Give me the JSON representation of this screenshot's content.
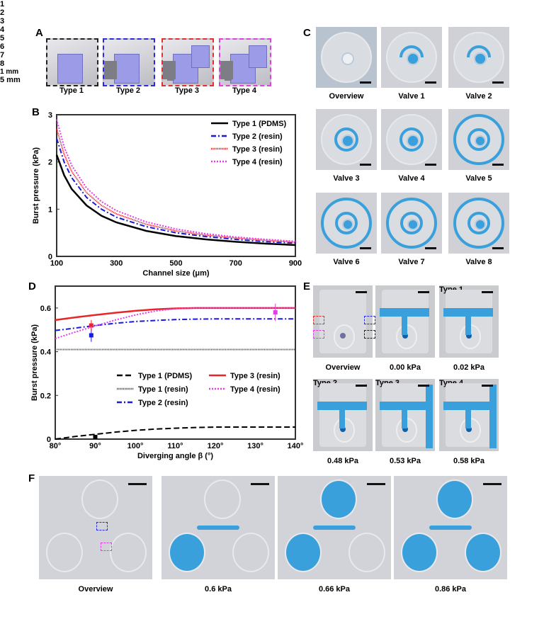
{
  "panels": {
    "A": "A",
    "B": "B",
    "C": "C",
    "D": "D",
    "E": "E",
    "F": "F"
  },
  "colors": {
    "type1": "#000000",
    "type2": "#1a1adc",
    "type3": "#e8262a",
    "type4": "#e83be8",
    "dye": "#3aa0dc"
  },
  "panelA": {
    "types": [
      {
        "label": "Type 1",
        "border": "#222222"
      },
      {
        "label": "Type 2",
        "border": "#2a2ae0"
      },
      {
        "label": "Type 3",
        "border": "#e03030"
      },
      {
        "label": "Type 4",
        "border": "#e040e0"
      }
    ]
  },
  "panelC": {
    "tiles": [
      "Overview",
      "Valve 1",
      "Valve 2",
      "Valve 3",
      "Valve 4",
      "Valve 5",
      "Valve 6",
      "Valve 7",
      "Valve 8"
    ],
    "overview_numbers": [
      "1",
      "2",
      "3",
      "4",
      "5",
      "6",
      "7",
      "8"
    ]
  },
  "panelE": {
    "scale": "1 mm",
    "tiles": [
      {
        "caption": "Overview",
        "label": ""
      },
      {
        "caption": "0.00 kPa",
        "label": ""
      },
      {
        "caption": "0.02 kPa",
        "label": "Type 1"
      },
      {
        "caption": "0.48 kPa",
        "label": "Type 2"
      },
      {
        "caption": "0.53 kPa",
        "label": "Type 3"
      },
      {
        "caption": "0.58 kPa",
        "label": "Type 4"
      }
    ]
  },
  "panelF": {
    "scale": "5 mm",
    "tiles": [
      "Overview",
      "0.6 kPa",
      "0.66 kPa",
      "0.86 kPa"
    ]
  },
  "chart_data": [
    {
      "panel": "B",
      "type": "line",
      "xlabel": "Channel size (μm)",
      "ylabel": "Burst pressure (kPa)",
      "xlim": [
        100,
        900
      ],
      "ylim": [
        0,
        3
      ],
      "xticks": [
        "100",
        "300",
        "500",
        "700",
        "900"
      ],
      "yticks": [
        "0",
        "1",
        "2",
        "3"
      ],
      "legend": "top-right",
      "grid": false,
      "x": [
        100,
        125,
        150,
        200,
        250,
        300,
        400,
        500,
        600,
        700,
        800,
        900
      ],
      "series": [
        {
          "name": "Type 1 (PDMS)",
          "style": "solid",
          "color": "#000000",
          "values": [
            2.15,
            1.72,
            1.43,
            1.08,
            0.86,
            0.72,
            0.54,
            0.43,
            0.36,
            0.31,
            0.27,
            0.24
          ]
        },
        {
          "name": "Type 2 (resin)",
          "style": "dashdot",
          "color": "#1a1adc",
          "values": [
            2.5,
            2.0,
            1.67,
            1.25,
            1.0,
            0.83,
            0.63,
            0.5,
            0.42,
            0.36,
            0.31,
            0.28
          ]
        },
        {
          "name": "Type 3 (resin)",
          "style": "dense-dot",
          "color": "#e8262a",
          "values": [
            2.7,
            2.16,
            1.8,
            1.35,
            1.08,
            0.9,
            0.68,
            0.54,
            0.45,
            0.39,
            0.34,
            0.3
          ]
        },
        {
          "name": "Type 4 (resin)",
          "style": "dotted",
          "color": "#e83be8",
          "values": [
            2.9,
            2.32,
            1.93,
            1.45,
            1.16,
            0.97,
            0.73,
            0.58,
            0.48,
            0.41,
            0.36,
            0.32
          ]
        }
      ]
    },
    {
      "panel": "D",
      "type": "line",
      "xlabel": "Diverging angle β (°)",
      "ylabel": "Burst pressure (kPa)",
      "xlim": [
        80,
        140
      ],
      "ylim": [
        0,
        0.7
      ],
      "xticks": [
        "80°",
        "90°",
        "100°",
        "110°",
        "120°",
        "130°",
        "140°"
      ],
      "yticks": [
        "0",
        "0.2",
        "0.4",
        "0.6"
      ],
      "legend": "center",
      "grid": false,
      "x": [
        80,
        85,
        90,
        95,
        100,
        105,
        110,
        115,
        120,
        130,
        140
      ],
      "series": [
        {
          "name": "Type 1 (PDMS)",
          "style": "dashed",
          "color": "#000000",
          "values": [
            0,
            0.012,
            0.022,
            0.032,
            0.04,
            0.046,
            0.05,
            0.053,
            0.055,
            0.055,
            0.055
          ],
          "points": [
            {
              "x": 90,
              "y": 0.01,
              "err": 0.005
            }
          ]
        },
        {
          "name": "Type 1 (resin)",
          "style": "dense-dot",
          "color": "#555555",
          "values": [
            0.41,
            0.41,
            0.41,
            0.41,
            0.41,
            0.41,
            0.41,
            0.41,
            0.41,
            0.41,
            0.41
          ]
        },
        {
          "name": "Type 2 (resin)",
          "style": "dashdot",
          "color": "#1a1adc",
          "values": [
            0.497,
            0.508,
            0.52,
            0.53,
            0.538,
            0.543,
            0.547,
            0.549,
            0.55,
            0.55,
            0.55
          ],
          "points": [
            {
              "x": 89,
              "y": 0.475,
              "err": 0.03
            }
          ]
        },
        {
          "name": "Type 3 (resin)",
          "style": "solid",
          "color": "#e8262a",
          "values": [
            0.545,
            0.557,
            0.568,
            0.578,
            0.587,
            0.594,
            0.598,
            0.6,
            0.6,
            0.6,
            0.6
          ],
          "points": [
            {
              "x": 89,
              "y": 0.52,
              "err": 0.025
            }
          ]
        },
        {
          "name": "Type 4 (resin)",
          "style": "dotted",
          "color": "#e83be8",
          "values": [
            0.46,
            0.49,
            0.518,
            0.545,
            0.568,
            0.586,
            0.597,
            0.6,
            0.6,
            0.6,
            0.6
          ],
          "points": [
            {
              "x": 135,
              "y": 0.58,
              "err": 0.04
            }
          ]
        }
      ]
    }
  ]
}
